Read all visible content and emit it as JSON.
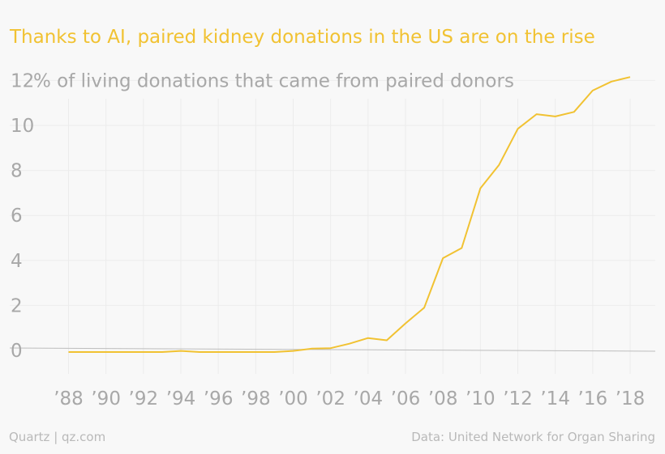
{
  "title": "Thanks to AI, paired kidney donations in the US are on the rise",
  "source": "Data: United Network for Organ Sharing",
  "credit": "Quartz | qz.com",
  "colors": {
    "background": "#f8f8f8",
    "title": "#f1c232",
    "line": "#f1c232",
    "text": "#a8a8a8",
    "grid": "#ececec",
    "zero_line": "#bdbdbd"
  },
  "chart_data": {
    "type": "line",
    "title": "Thanks to AI, paired kidney donations in the US are on the rise",
    "ylabel": "% of living donations that came from paired donors",
    "xlabel": "",
    "ylim": [
      -0.5,
      12.5
    ],
    "xlim": [
      1987,
      2019
    ],
    "grid": true,
    "yticks": [
      0,
      2,
      4,
      6,
      8,
      10,
      12
    ],
    "ytick_labels": [
      "0",
      "2",
      "4",
      "6",
      "8",
      "10",
      "12"
    ],
    "top_tick_suffix": "% of living donations that came from paired donors",
    "xticks": [
      1988,
      1990,
      1992,
      1994,
      1996,
      1998,
      2000,
      2002,
      2004,
      2006,
      2008,
      2010,
      2012,
      2014,
      2016,
      2018
    ],
    "xtick_labels": [
      "’88",
      "’90",
      "’92",
      "’94",
      "’96",
      "’98",
      "’00",
      "’02",
      "’04",
      "’06",
      "’08",
      "’10",
      "’12",
      "’14",
      "’16",
      "’18"
    ],
    "series": [
      {
        "x": [
          1988,
          1989,
          1990,
          1991,
          1992,
          1993,
          1994,
          1995,
          1996,
          1997,
          1998,
          1999,
          2000,
          2001,
          2002,
          2003,
          2004,
          2005,
          2006,
          2007,
          2008,
          2009,
          2010,
          2011,
          2012,
          2013,
          2014,
          2015,
          2016,
          2017,
          2018
        ],
        "y": [
          0.0,
          0.0,
          0.0,
          0.0,
          0.0,
          0.0,
          0.05,
          0.0,
          0.0,
          0.0,
          0.0,
          0.0,
          0.05,
          0.08,
          0.1,
          0.3,
          0.55,
          0.45,
          1.2,
          1.9,
          4.1,
          4.55,
          7.2,
          8.25,
          9.85,
          10.5,
          10.4,
          10.6,
          11.55,
          11.95,
          12.15
        ]
      }
    ]
  }
}
